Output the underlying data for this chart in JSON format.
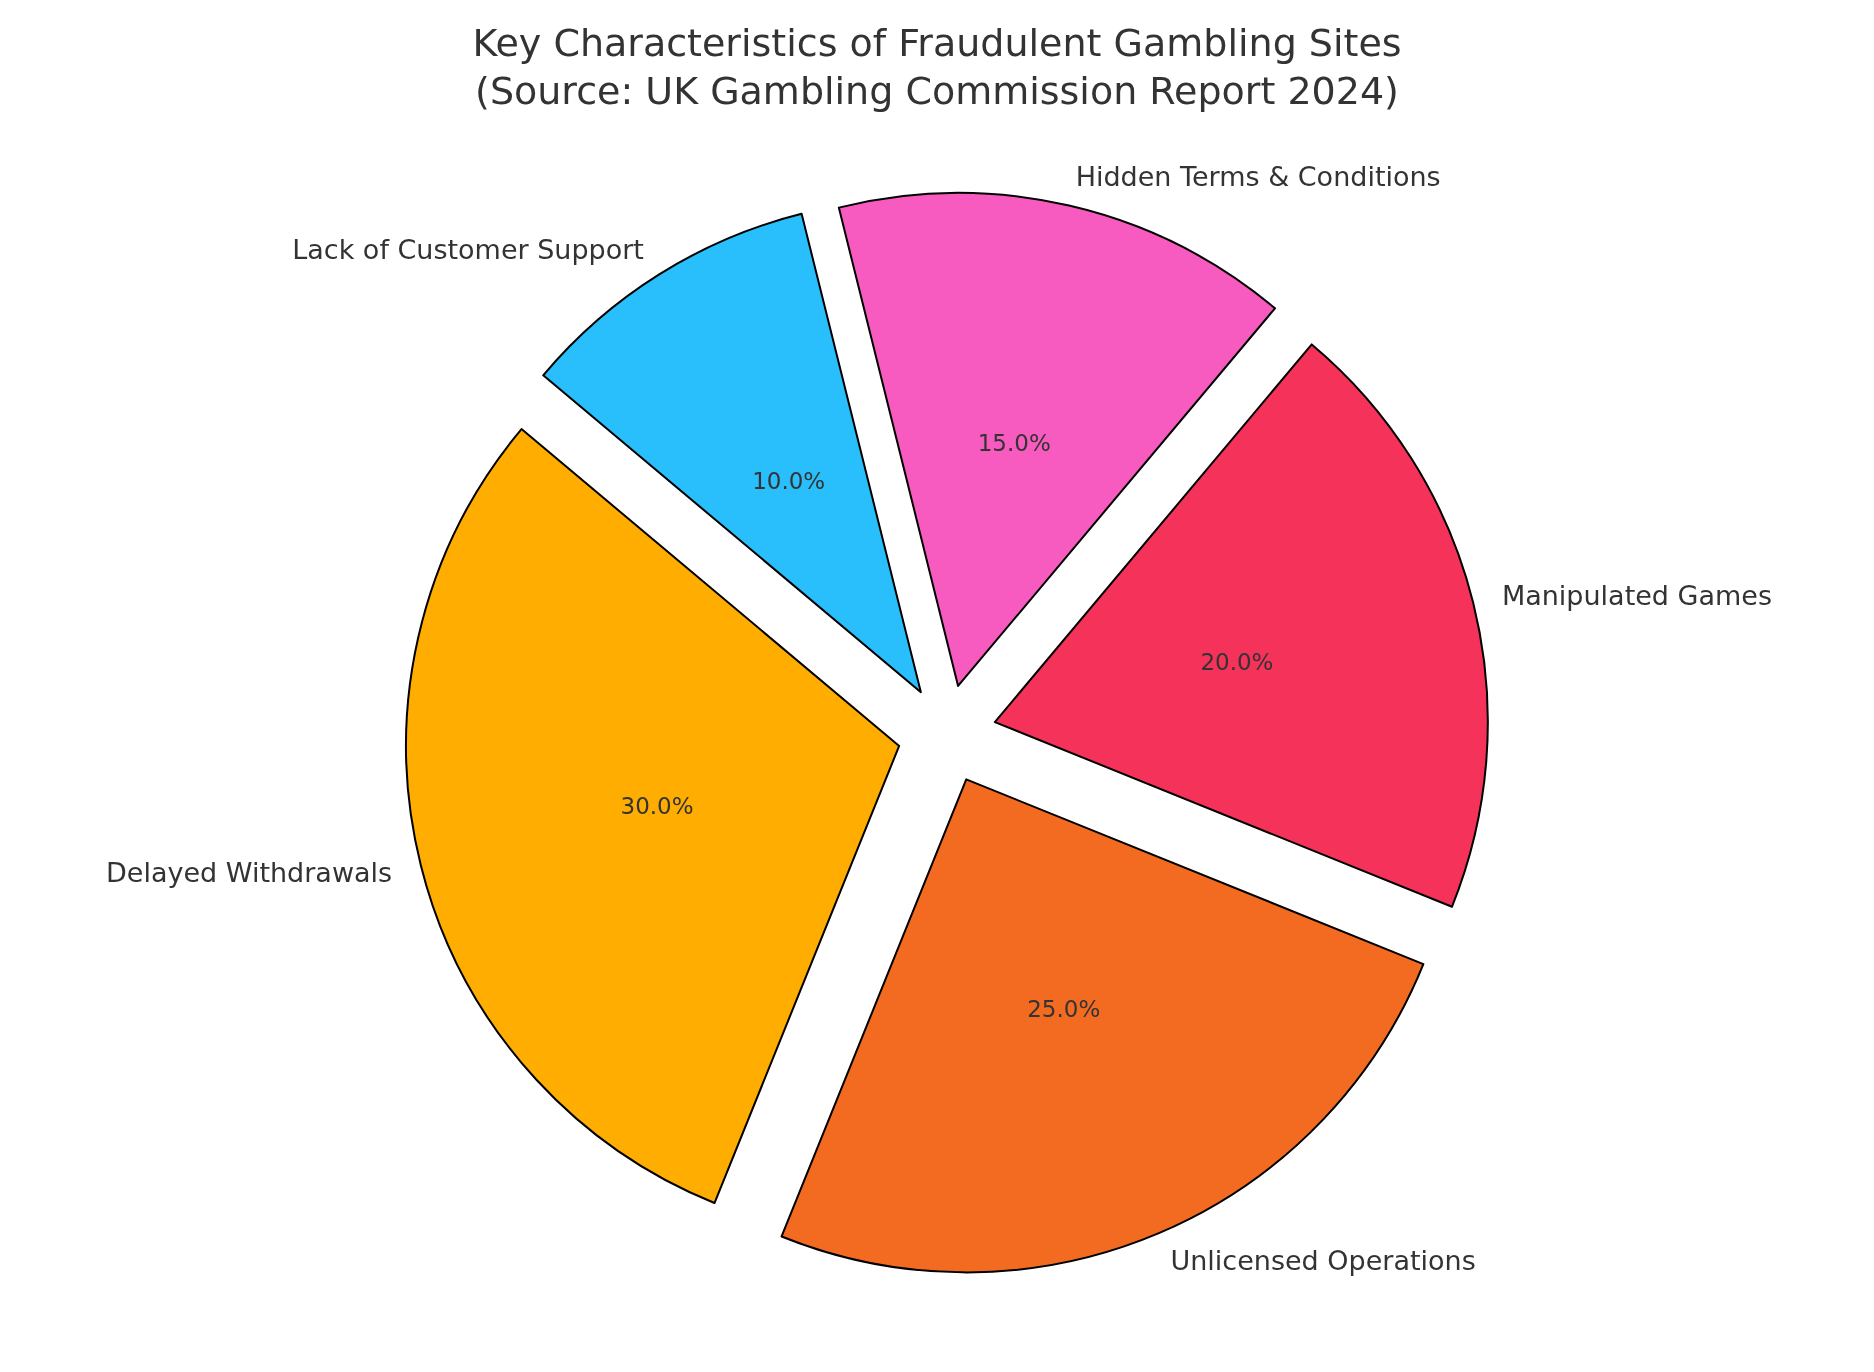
{
  "chart_data": {
    "type": "pie",
    "title": "Key Characteristics of Fraudulent Gambling Sites\n(Source: UK Gambling Commission Report 2024)",
    "categories": [
      "Delayed Withdrawals",
      "Unlicensed Operations",
      "Manipulated Games",
      "Hidden Terms & Conditions",
      "Lack of Customer Support"
    ],
    "values": [
      30,
      25,
      20,
      15,
      10
    ],
    "colors": [
      "#ffad00",
      "#f26b21",
      "#f5325a",
      "#f75bbf",
      "#29bffc"
    ],
    "value_labels": [
      "30.0%",
      "25.0%",
      "20.0%",
      "15.0%",
      "10.0%"
    ]
  }
}
